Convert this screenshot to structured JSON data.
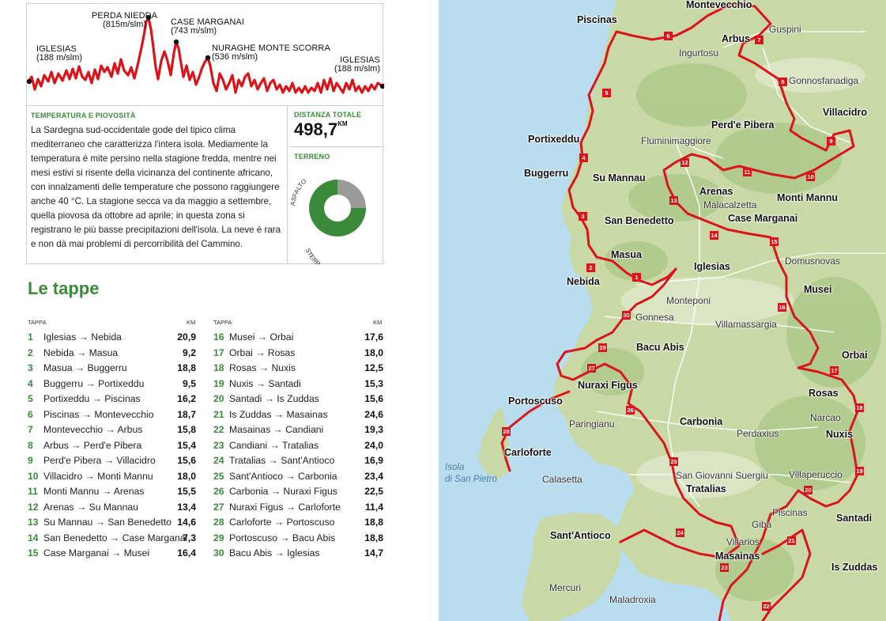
{
  "profile": {
    "labels": [
      {
        "name": "Iglesias",
        "elev": "(188 m/slm)"
      },
      {
        "name": "Perda Niedda",
        "elev": "(815m/slm)"
      },
      {
        "name": "Case Marganai",
        "elev": "(743 m/slm)"
      },
      {
        "name": "Nuraghe Monte Scorra",
        "elev": "(536 m/slm)"
      },
      {
        "name": "Iglesias",
        "elev": "(188 m/slm)"
      }
    ]
  },
  "climate": {
    "title": "Temperatura e piovosità",
    "text": "La Sardegna sud-occidentale gode del tipico clima mediterraneo che caratterizza l'intera isola. Mediamente la temperatura è mite persino nella stagione fredda, mentre nei mesi estivi si risente della vicinanza del continente africano, con innalzamenti delle temperature che possono raggiungere anche 40 °C. La stagione secca va da maggio a settembre, quella piovosa da ottobre ad aprile; in questa zona si registrano le più basse precipitazioni dell'isola. La neve è rara e non dà mai problemi di percorribilità del Cammino."
  },
  "distance": {
    "title": "Distanza totale",
    "value": "498,7",
    "unit": "KM"
  },
  "terrain": {
    "title": "Terreno",
    "slices": [
      {
        "name": "Asfalto",
        "fraction": 0.25,
        "color": "#9a9a9a"
      },
      {
        "name": "Sterrato/Sentiero",
        "fraction": 0.75,
        "color": "#3a8a3a"
      }
    ]
  },
  "stages": {
    "title": "Le tappe",
    "header": {
      "stage": "Tappa",
      "km": "KM"
    },
    "items": [
      {
        "num": "1",
        "route": "Iglesias → Nebida",
        "km": "20,9"
      },
      {
        "num": "2",
        "route": "Nebida → Masua",
        "km": "9,2"
      },
      {
        "num": "3",
        "route": "Masua → Buggerru",
        "km": "18,8"
      },
      {
        "num": "4",
        "route": "Buggerru → Portixeddu",
        "km": "9,5"
      },
      {
        "num": "5",
        "route": "Portixeddu → Piscinas",
        "km": "16,2"
      },
      {
        "num": "6",
        "route": "Piscinas → Montevecchio",
        "km": "18,7"
      },
      {
        "num": "7",
        "route": "Montevecchio → Arbus",
        "km": "15,8"
      },
      {
        "num": "8",
        "route": "Arbus → Perd'e Pibera",
        "km": "15,4"
      },
      {
        "num": "9",
        "route": "Perd'e Pibera → Villacidro",
        "km": "15,6"
      },
      {
        "num": "10",
        "route": "Villacidro → Monti Mannu",
        "km": "18,0"
      },
      {
        "num": "11",
        "route": "Monti Mannu → Arenas",
        "km": "15,5"
      },
      {
        "num": "12",
        "route": "Arenas → Su Mannau",
        "km": "13,4"
      },
      {
        "num": "13",
        "route": "Su Mannau → San Benedetto",
        "km": "14,6"
      },
      {
        "num": "14",
        "route": "San Benedetto → Case Marganai",
        "km": "7,3"
      },
      {
        "num": "15",
        "route": "Case Marganai → Musei",
        "km": "16,4"
      },
      {
        "num": "16",
        "route": "Musei → Orbai",
        "km": "17,6"
      },
      {
        "num": "17",
        "route": "Orbai → Rosas",
        "km": "18,0"
      },
      {
        "num": "18",
        "route": "Rosas → Nuxis",
        "km": "12,5"
      },
      {
        "num": "19",
        "route": "Nuxis → Santadi",
        "km": "15,3"
      },
      {
        "num": "20",
        "route": "Santadi → Is Zuddas",
        "km": "15,6"
      },
      {
        "num": "21",
        "route": "Is Zuddas → Masainas",
        "km": "24,6"
      },
      {
        "num": "22",
        "route": "Masainas → Candiani",
        "km": "19,3"
      },
      {
        "num": "23",
        "route": "Candiani → Tratalias",
        "km": "24,0"
      },
      {
        "num": "24",
        "route": "Tratalias → Sant'Antioco",
        "km": "16,9"
      },
      {
        "num": "25",
        "route": "Sant'Antioco → Carbonia",
        "km": "23,4"
      },
      {
        "num": "26",
        "route": "Carbonia → Nuraxi Figus",
        "km": "22,5"
      },
      {
        "num": "27",
        "route": "Nuraxi Figus → Carloforte",
        "km": "11,4"
      },
      {
        "num": "28",
        "route": "Carloforte → Portoscuso",
        "km": "18,8"
      },
      {
        "num": "29",
        "route": "Portoscuso → Bacu Abis",
        "km": "18,8"
      },
      {
        "num": "30",
        "route": "Bacu Abis → Iglesias",
        "km": "14,7"
      }
    ]
  },
  "map": {
    "colors": {
      "sea": "#b9dcef",
      "land": "#c9d9a6",
      "route": "#d9141b"
    },
    "major_towns": [
      "Montevecchio",
      "Piscinas",
      "Arbus",
      "Villacidro",
      "Perd'e Pibera",
      "Portixeddu",
      "Buggerru",
      "Su Mannau",
      "Arenas",
      "Monti Mannu",
      "San Benedetto",
      "Case Marganai",
      "Masua",
      "Iglesias",
      "Nebida",
      "Musei",
      "Bacu Abis",
      "Orbai",
      "Nuraxi Figus",
      "Rosas",
      "Portoscuso",
      "Carbonia",
      "Nuxis",
      "Carloforte",
      "Tratalias",
      "Santadi",
      "Sant'Antioco",
      "Masainas",
      "Is Zuddas"
    ],
    "minor_towns": [
      "Guspini",
      "Ingurtosu",
      "Gonnosfanadiga",
      "Fluminimaggiore",
      "Malacalzetta",
      "Domusnovas",
      "Monteponi",
      "Gonnesa",
      "Villamassargia",
      "Narcao",
      "Paringianu",
      "Perdaxius",
      "Calasetta",
      "San Giovanni Suergiu",
      "Villaperuccio",
      "Piscinas",
      "Giba",
      "Villarios",
      "Mercuri",
      "Maladroxia"
    ],
    "sea_labels": [
      "Isola",
      "di San Pietro"
    ]
  }
}
